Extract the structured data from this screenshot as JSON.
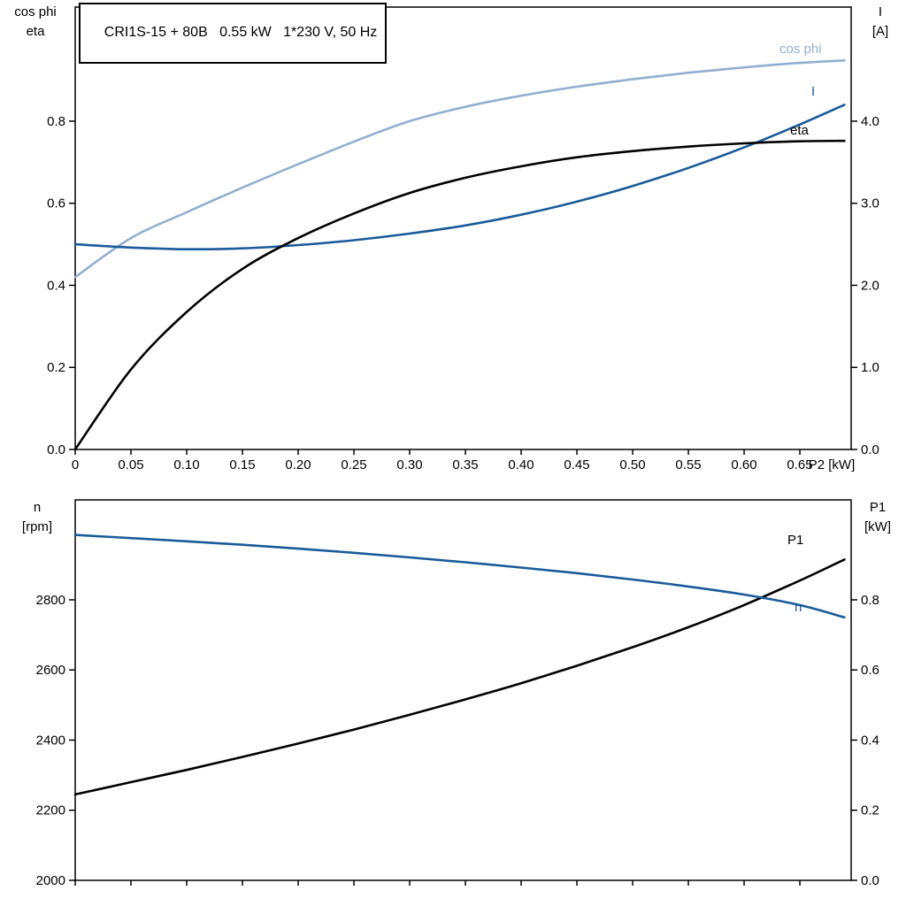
{
  "title_box": {
    "text": "CRI1S-15 + 80B   0.55 kW   1*230 V, 50 Hz"
  },
  "colors": {
    "curve_light_blue": "#92AFCF",
    "curve_dark_blue": "#1A5A9A",
    "curve_black": "#000000",
    "axis": "#000000"
  },
  "axis_corner_labels": {
    "top_left_line1": "cos phi",
    "top_left_line2": "eta",
    "top_right_line1": "I",
    "top_right_line2": "[A]",
    "bottom_left_line1": "n",
    "bottom_left_line2": "[rpm]",
    "bottom_right_line1": "P1",
    "bottom_right_line2": "[kW]"
  },
  "chart_data": [
    {
      "id": "top",
      "type": "line",
      "title": "CRI1S-15 + 80B 0.55 kW 1*230 V, 50 Hz",
      "x_axis": {
        "min": 0,
        "max": 0.696,
        "unit_label": "P2 [kW]",
        "ticks": [
          0,
          0.05,
          0.1,
          0.15,
          0.2,
          0.25,
          0.3,
          0.35,
          0.4,
          0.45,
          0.5,
          0.55,
          0.6,
          0.65
        ],
        "tick_labels": [
          "0",
          "0.05",
          "0.10",
          "0.15",
          "0.20",
          "0.25",
          "0.30",
          "0.35",
          "0.40",
          "0.45",
          "0.50",
          "0.55",
          "0.60",
          "0.65"
        ],
        "show_tick_labels": true
      },
      "left_axis": {
        "label": "cos phi / eta",
        "min": 0,
        "max": 1.078,
        "ticks": [
          0,
          0.2,
          0.4,
          0.6,
          0.8
        ],
        "tick_labels": [
          "0.0",
          "0.2",
          "0.4",
          "0.6",
          "0.8"
        ]
      },
      "right_axis": {
        "label": "I [A]",
        "min": 0,
        "max": 5.39,
        "ticks": [
          0,
          1,
          2,
          3,
          4
        ],
        "tick_labels": [
          "0.0",
          "1.0",
          "2.0",
          "3.0",
          "4.0"
        ]
      },
      "x": [
        0,
        0.05,
        0.1,
        0.15,
        0.2,
        0.25,
        0.3,
        0.35,
        0.4,
        0.45,
        0.5,
        0.55,
        0.6,
        0.65,
        0.69
      ],
      "series": [
        {
          "name": "cos phi",
          "axis": "left",
          "color_key": "curve_light_blue",
          "values": [
            0.42,
            0.515,
            0.578,
            0.638,
            0.695,
            0.75,
            0.8,
            0.835,
            0.862,
            0.884,
            0.902,
            0.918,
            0.931,
            0.942,
            0.948
          ]
        },
        {
          "name": "I",
          "axis": "right",
          "color_key": "curve_dark_blue",
          "values": [
            2.5,
            2.46,
            2.44,
            2.45,
            2.49,
            2.55,
            2.63,
            2.73,
            2.86,
            3.02,
            3.21,
            3.43,
            3.68,
            3.96,
            4.2
          ]
        },
        {
          "name": "eta",
          "axis": "left",
          "color_key": "curve_black",
          "values": [
            0,
            0.195,
            0.335,
            0.44,
            0.515,
            0.575,
            0.625,
            0.662,
            0.69,
            0.712,
            0.727,
            0.738,
            0.746,
            0.751,
            0.752
          ]
        }
      ]
    },
    {
      "id": "bottom",
      "type": "line",
      "title": "",
      "x_axis": {
        "min": 0,
        "max": 0.696,
        "unit_label": "",
        "ticks": [
          0,
          0.05,
          0.1,
          0.15,
          0.2,
          0.25,
          0.3,
          0.35,
          0.4,
          0.45,
          0.5,
          0.55,
          0.6,
          0.65
        ],
        "tick_labels": [],
        "show_tick_labels": false
      },
      "left_axis": {
        "label": "n [rpm]",
        "min": 2000,
        "max": 3085,
        "ticks": [
          2000,
          2200,
          2400,
          2600,
          2800
        ],
        "tick_labels": [
          "2000",
          "2200",
          "2400",
          "2600",
          "2800"
        ]
      },
      "right_axis": {
        "label": "P1 [kW]",
        "min": 0,
        "max": 1.085,
        "ticks": [
          0,
          0.2,
          0.4,
          0.6,
          0.8
        ],
        "tick_labels": [
          "0.0",
          "0.2",
          "0.4",
          "0.6",
          "0.8"
        ]
      },
      "x": [
        0,
        0.05,
        0.1,
        0.15,
        0.2,
        0.25,
        0.3,
        0.35,
        0.4,
        0.45,
        0.5,
        0.55,
        0.6,
        0.65,
        0.69
      ],
      "series": [
        {
          "name": "P1",
          "axis": "right",
          "color_key": "curve_black",
          "values": [
            0.245,
            0.28,
            0.315,
            0.352,
            0.39,
            0.43,
            0.472,
            0.516,
            0.562,
            0.612,
            0.665,
            0.722,
            0.785,
            0.855,
            0.915
          ]
        },
        {
          "name": "n",
          "axis": "left",
          "color_key": "curve_dark_blue",
          "values": [
            2985,
            2976,
            2967,
            2957,
            2946,
            2934,
            2921,
            2907,
            2892,
            2876,
            2858,
            2838,
            2815,
            2785,
            2750
          ]
        }
      ]
    }
  ]
}
